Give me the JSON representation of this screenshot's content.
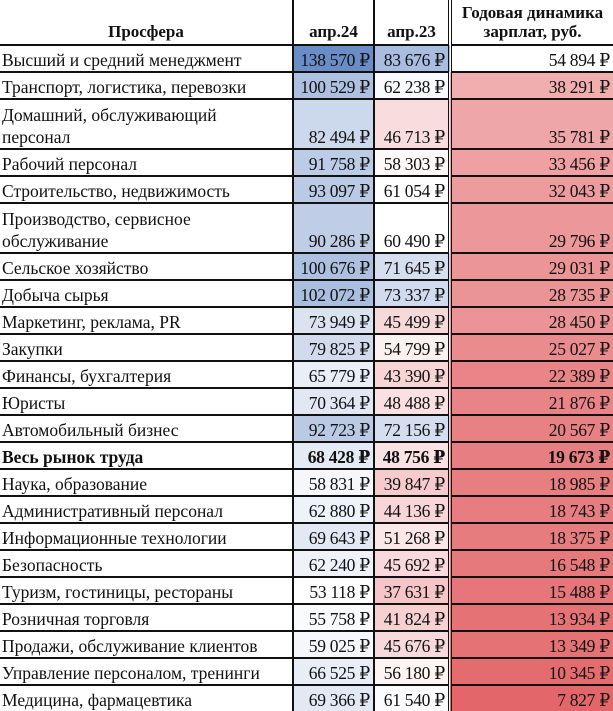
{
  "header": {
    "name": "Просфера",
    "apr24": "апр.24",
    "apr23": "апр.23",
    "dynamics": "Годовая динамика зарплат, руб."
  },
  "colors": {
    "blue_high": "#6b8dc7",
    "white": "#ffffff",
    "red_low": "#f5c5c7",
    "red_strong": "#e3676a"
  },
  "rows": [
    {
      "name": "Высший и средний менеджмент",
      "apr24": 138570,
      "apr23": 83676,
      "dyn": 54894,
      "apr24_text": "138 570 ₽",
      "apr23_text": "83 676 ₽",
      "dyn_text": "54 894 ₽"
    },
    {
      "name": "Транспорт, логистика, перевозки",
      "apr24": 100529,
      "apr23": 62238,
      "dyn": 38291,
      "apr24_text": "100 529 ₽",
      "apr23_text": "62 238 ₽",
      "dyn_text": "38 291 ₽"
    },
    {
      "name": "Домашний, обслуживающий персонал",
      "apr24": 82494,
      "apr23": 46713,
      "dyn": 35781,
      "apr24_text": "82 494 ₽",
      "apr23_text": "46 713 ₽",
      "dyn_text": "35 781 ₽",
      "tall": true
    },
    {
      "name": "Рабочий персонал",
      "apr24": 91758,
      "apr23": 58303,
      "dyn": 33456,
      "apr24_text": "91 758 ₽",
      "apr23_text": "58 303 ₽",
      "dyn_text": "33 456 ₽"
    },
    {
      "name": "Строительство, недвижимость",
      "apr24": 93097,
      "apr23": 61054,
      "dyn": 32043,
      "apr24_text": "93 097 ₽",
      "apr23_text": "61 054 ₽",
      "dyn_text": "32 043 ₽"
    },
    {
      "name": "Производство, сервисное обслуживание",
      "apr24": 90286,
      "apr23": 60490,
      "dyn": 29796,
      "apr24_text": "90 286 ₽",
      "apr23_text": "60 490 ₽",
      "dyn_text": "29 796 ₽",
      "tall": true
    },
    {
      "name": "Сельское хозяйство",
      "apr24": 100676,
      "apr23": 71645,
      "dyn": 29031,
      "apr24_text": "100 676 ₽",
      "apr23_text": "71 645 ₽",
      "dyn_text": "29 031 ₽"
    },
    {
      "name": "Добыча сырья",
      "apr24": 102072,
      "apr23": 73337,
      "dyn": 28735,
      "apr24_text": "102 072 ₽",
      "apr23_text": "73 337 ₽",
      "dyn_text": "28 735 ₽"
    },
    {
      "name": "Маркетинг, реклама, PR",
      "apr24": 73949,
      "apr23": 45499,
      "dyn": 28450,
      "apr24_text": "73 949 ₽",
      "apr23_text": "45 499 ₽",
      "dyn_text": "28 450 ₽"
    },
    {
      "name": "Закупки",
      "apr24": 79825,
      "apr23": 54799,
      "dyn": 25027,
      "apr24_text": "79 825 ₽",
      "apr23_text": "54 799 ₽",
      "dyn_text": "25 027 ₽"
    },
    {
      "name": "Финансы, бухгалтерия",
      "apr24": 65779,
      "apr23": 43390,
      "dyn": 22389,
      "apr24_text": "65 779 ₽",
      "apr23_text": "43 390 ₽",
      "dyn_text": "22 389 ₽"
    },
    {
      "name": "Юристы",
      "apr24": 70364,
      "apr23": 48488,
      "dyn": 21876,
      "apr24_text": "70 364 ₽",
      "apr23_text": "48 488 ₽",
      "dyn_text": "21 876 ₽"
    },
    {
      "name": "Автомобильный бизнес",
      "apr24": 92723,
      "apr23": 72156,
      "dyn": 20567,
      "apr24_text": "92 723 ₽",
      "apr23_text": "72 156 ₽",
      "dyn_text": "20 567 ₽"
    },
    {
      "name": "Весь рынок труда",
      "apr24": 68428,
      "apr23": 48756,
      "dyn": 19673,
      "apr24_text": "68 428 ₽",
      "apr23_text": "48 756 ₽",
      "dyn_text": "19 673 ₽",
      "total": true
    },
    {
      "name": "Наука, образование",
      "apr24": 58831,
      "apr23": 39847,
      "dyn": 18985,
      "apr24_text": "58 831 ₽",
      "apr23_text": "39 847 ₽",
      "dyn_text": "18 985 ₽"
    },
    {
      "name": "Административный персонал",
      "apr24": 62880,
      "apr23": 44136,
      "dyn": 18743,
      "apr24_text": "62 880 ₽",
      "apr23_text": "44 136 ₽",
      "dyn_text": "18 743 ₽"
    },
    {
      "name": "Информационные технологии",
      "apr24": 69643,
      "apr23": 51268,
      "dyn": 18375,
      "apr24_text": "69 643 ₽",
      "apr23_text": "51 268 ₽",
      "dyn_text": "18 375 ₽"
    },
    {
      "name": "Безопасность",
      "apr24": 62240,
      "apr23": 45692,
      "dyn": 16548,
      "apr24_text": "62 240 ₽",
      "apr23_text": "45 692 ₽",
      "dyn_text": "16 548 ₽"
    },
    {
      "name": "Туризм, гостиницы, рестораны",
      "apr24": 53118,
      "apr23": 37631,
      "dyn": 15488,
      "apr24_text": "53 118 ₽",
      "apr23_text": "37 631 ₽",
      "dyn_text": "15 488 ₽"
    },
    {
      "name": "Розничная торговля",
      "apr24": 55758,
      "apr23": 41824,
      "dyn": 13934,
      "apr24_text": "55 758 ₽",
      "apr23_text": "41 824 ₽",
      "dyn_text": "13 934 ₽"
    },
    {
      "name": "Продажи, обслуживание клиентов",
      "apr24": 59025,
      "apr23": 45676,
      "dyn": 13349,
      "apr24_text": "59 025 ₽",
      "apr23_text": "45 676 ₽",
      "dyn_text": "13 349 ₽"
    },
    {
      "name": "Управление персоналом, тренинги",
      "apr24": 66525,
      "apr23": 56180,
      "dyn": 10345,
      "apr24_text": "66 525 ₽",
      "apr23_text": "56 180 ₽",
      "dyn_text": "10 345 ₽"
    },
    {
      "name": "Медицина, фармацевтика",
      "apr24": 69366,
      "apr23": 61540,
      "dyn": 7827,
      "apr24_text": "69 366 ₽",
      "apr23_text": "61 540 ₽",
      "dyn_text": "7 827 ₽"
    }
  ]
}
